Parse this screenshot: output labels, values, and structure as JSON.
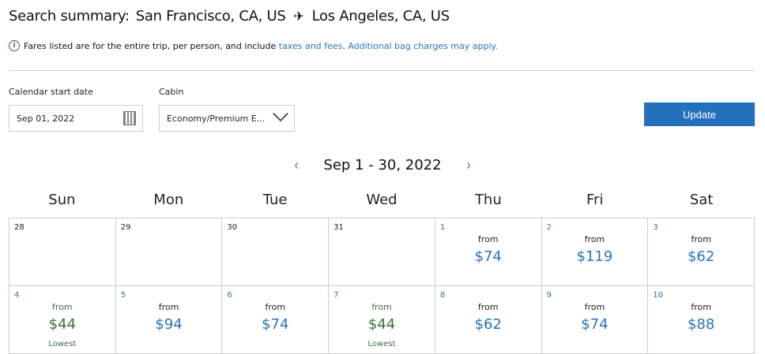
{
  "header": {
    "prefix": "Search summary:",
    "origin": "San Francisco, CA, US",
    "destination": "Los Angeles, CA, US",
    "icon": "airplane-icon"
  },
  "notice": {
    "text_bold": "Fares listed are for the entire trip",
    "text": ", per person, and include ",
    "link1": "taxes and fees",
    "sep": ". ",
    "link2": "Additional bag charges may apply."
  },
  "form": {
    "date_label": "Calendar start date",
    "date_value": "Sep 01, 2022",
    "cabin_label": "Cabin",
    "cabin_value": "Economy/Premium E...",
    "update_label": "Update"
  },
  "calendar": {
    "range": "Sep 1 - 30, 2022",
    "prev": "‹",
    "next": "›",
    "days_of_week": [
      "Sun",
      "Mon",
      "Tue",
      "Wed",
      "Thu",
      "Fri",
      "Sat"
    ],
    "from_label": "from",
    "lowest_label": "Lowest",
    "colors": {
      "price": "#2c72b8",
      "lowest": "#3b6e3b"
    },
    "cells": [
      {
        "day": "28"
      },
      {
        "day": "29"
      },
      {
        "day": "30"
      },
      {
        "day": "31"
      },
      {
        "day": "1",
        "price": "$74"
      },
      {
        "day": "2",
        "price": "$119"
      },
      {
        "day": "3",
        "price": "$62"
      },
      {
        "day": "4",
        "price": "$44",
        "lowest": true
      },
      {
        "day": "5",
        "price": "$94"
      },
      {
        "day": "6",
        "price": "$74"
      },
      {
        "day": "7",
        "price": "$44",
        "lowest": true
      },
      {
        "day": "8",
        "price": "$62"
      },
      {
        "day": "9",
        "price": "$74"
      },
      {
        "day": "10",
        "price": "$88"
      }
    ]
  }
}
